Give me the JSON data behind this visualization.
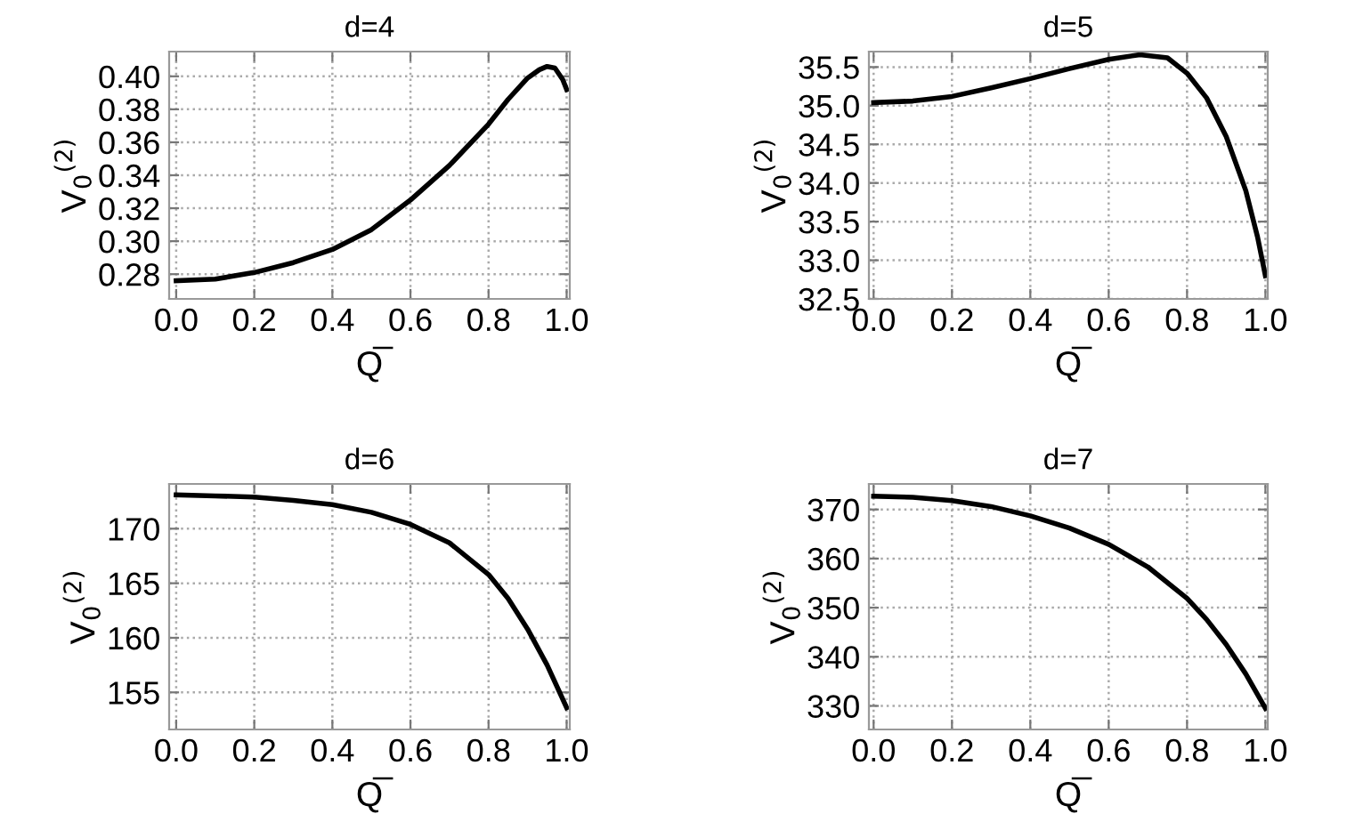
{
  "chart_data": [
    {
      "type": "line",
      "title": "d=4",
      "xlabel": "Q̅",
      "ylabel": "V$_{0}$$^{(2)}$",
      "grid": true,
      "line_style": "solid",
      "marker": "none",
      "xlim": [
        -0.018,
        1.008
      ],
      "xticks": [
        {
          "value": 0,
          "label": "0.0"
        },
        {
          "value": 0.2,
          "label": "0.2"
        },
        {
          "value": 0.4,
          "label": "0.4"
        },
        {
          "value": 0.6,
          "label": "0.6"
        },
        {
          "value": 0.8,
          "label": "0.8"
        },
        {
          "value": 1,
          "label": "1.0"
        }
      ],
      "ylim": [
        0.265,
        0.415
      ],
      "yticks": [
        {
          "value": 0.28,
          "label": "0.28"
        },
        {
          "value": 0.3,
          "label": "0.30"
        },
        {
          "value": 0.32,
          "label": "0.32"
        },
        {
          "value": 0.34,
          "label": "0.34"
        },
        {
          "value": 0.36,
          "label": "0.36"
        },
        {
          "value": 0.38,
          "label": "0.38"
        },
        {
          "value": 0.4,
          "label": "0.40"
        }
      ],
      "x": [
        0,
        0.1,
        0.2,
        0.3,
        0.4,
        0.5,
        0.6,
        0.7,
        0.8,
        0.85,
        0.9,
        0.93,
        0.95,
        0.97,
        0.99,
        1.0
      ],
      "series": [
        {
          "color": "#000000",
          "values": [
            0.276,
            0.277,
            0.281,
            0.287,
            0.295,
            0.307,
            0.325,
            0.346,
            0.371,
            0.386,
            0.399,
            0.404,
            0.406,
            0.405,
            0.398,
            0.392
          ]
        }
      ]
    },
    {
      "type": "line",
      "title": "d=5",
      "xlabel": "Q̅",
      "ylabel": "V$_{0}$$^{(2)}$",
      "grid": true,
      "line_style": "solid",
      "marker": "none",
      "xlim": [
        -0.012,
        1.006
      ],
      "xticks": [
        {
          "value": 0,
          "label": "0.0"
        },
        {
          "value": 0.2,
          "label": "0.2"
        },
        {
          "value": 0.4,
          "label": "0.4"
        },
        {
          "value": 0.6,
          "label": "0.6"
        },
        {
          "value": 0.8,
          "label": "0.8"
        },
        {
          "value": 1,
          "label": "1.0"
        }
      ],
      "ylim": [
        32.5,
        35.7
      ],
      "yticks": [
        32.5,
        {
          "value": 33,
          "label": "33.0"
        },
        33.5,
        {
          "value": 34,
          "label": "34.0"
        },
        34.5,
        {
          "value": 35,
          "label": "35.0"
        },
        35.5
      ],
      "x": [
        0,
        0.1,
        0.2,
        0.3,
        0.4,
        0.5,
        0.6,
        0.68,
        0.75,
        0.8,
        0.85,
        0.9,
        0.95,
        0.98,
        1.0
      ],
      "series": [
        {
          "color": "#000000",
          "values": [
            35.04,
            35.06,
            35.12,
            35.23,
            35.35,
            35.48,
            35.6,
            35.66,
            35.62,
            35.42,
            35.1,
            34.6,
            33.9,
            33.3,
            32.8
          ]
        }
      ]
    },
    {
      "type": "line",
      "title": "d=6",
      "xlabel": "Q̅",
      "ylabel": "V$_{0}$$^{(2)}$",
      "grid": true,
      "line_style": "solid",
      "marker": "none",
      "xlim": [
        -0.018,
        1.008
      ],
      "xticks": [
        {
          "value": 0,
          "label": "0.0"
        },
        {
          "value": 0.2,
          "label": "0.2"
        },
        {
          "value": 0.4,
          "label": "0.4"
        },
        {
          "value": 0.6,
          "label": "0.6"
        },
        {
          "value": 0.8,
          "label": "0.8"
        },
        {
          "value": 1,
          "label": "1.0"
        }
      ],
      "ylim": [
        151.6,
        174.1
      ],
      "yticks": [
        155,
        160,
        165,
        170
      ],
      "x": [
        0,
        0.1,
        0.2,
        0.3,
        0.4,
        0.5,
        0.6,
        0.7,
        0.8,
        0.85,
        0.9,
        0.95,
        1.0
      ],
      "series": [
        {
          "color": "#000000",
          "values": [
            173.1,
            173.0,
            172.9,
            172.6,
            172.2,
            171.5,
            170.4,
            168.7,
            165.8,
            163.6,
            160.8,
            157.5,
            153.6
          ]
        }
      ]
    },
    {
      "type": "line",
      "title": "d=7",
      "xlabel": "Q̅",
      "ylabel": "V$_{0}$$^{(2)}$",
      "grid": true,
      "line_style": "solid",
      "marker": "none",
      "xlim": [
        -0.012,
        1.006
      ],
      "xticks": [
        {
          "value": 0,
          "label": "0.0"
        },
        {
          "value": 0.2,
          "label": "0.2"
        },
        {
          "value": 0.4,
          "label": "0.4"
        },
        {
          "value": 0.6,
          "label": "0.6"
        },
        {
          "value": 0.8,
          "label": "0.8"
        },
        {
          "value": 1,
          "label": "1.0"
        }
      ],
      "ylim": [
        325.2,
        375.2
      ],
      "yticks": [
        330,
        340,
        350,
        360,
        370
      ],
      "x": [
        0,
        0.1,
        0.2,
        0.3,
        0.4,
        0.5,
        0.6,
        0.7,
        0.8,
        0.85,
        0.9,
        0.95,
        1.0
      ],
      "series": [
        {
          "color": "#000000",
          "values": [
            372.7,
            372.5,
            371.8,
            370.6,
            368.7,
            366.2,
            362.9,
            358.3,
            351.9,
            347.6,
            342.5,
            336.5,
            329.5
          ]
        }
      ]
    }
  ]
}
